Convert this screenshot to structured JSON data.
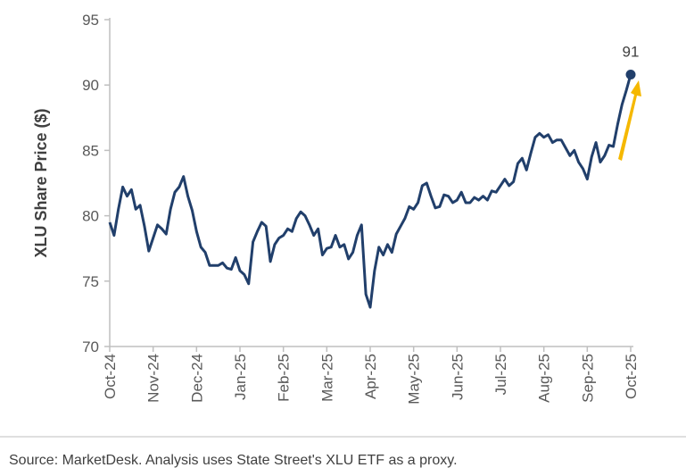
{
  "chart_data": {
    "type": "line",
    "y_label": "XLU Share Price ($)",
    "source": "Source: MarketDesk. Analysis uses State Street's XLU ETF as a proxy.",
    "categories": [
      "Oct-24",
      null,
      null,
      null,
      null,
      null,
      null,
      null,
      null,
      null,
      "Nov-24",
      null,
      null,
      null,
      null,
      null,
      null,
      null,
      null,
      null,
      "Dec-24",
      null,
      null,
      null,
      null,
      null,
      null,
      null,
      null,
      null,
      "Jan-25",
      null,
      null,
      null,
      null,
      null,
      null,
      null,
      null,
      null,
      "Feb-25",
      null,
      null,
      null,
      null,
      null,
      null,
      null,
      null,
      null,
      "Mar-25",
      null,
      null,
      null,
      null,
      null,
      null,
      null,
      null,
      null,
      "Apr-25",
      null,
      null,
      null,
      null,
      null,
      null,
      null,
      null,
      null,
      "May-25",
      null,
      null,
      null,
      null,
      null,
      null,
      null,
      null,
      null,
      "Jun-25",
      null,
      null,
      null,
      null,
      null,
      null,
      null,
      null,
      null,
      "Jul-25",
      null,
      null,
      null,
      null,
      null,
      null,
      null,
      null,
      null,
      "Aug-25",
      null,
      null,
      null,
      null,
      null,
      null,
      null,
      null,
      null,
      "Sep-25",
      null,
      null,
      null,
      null,
      null,
      null,
      null,
      null,
      null,
      "Oct-25"
    ],
    "series": [
      {
        "name": "XLU",
        "color": "#213f6b",
        "values": [
          79.5,
          78.5,
          80.5,
          82.2,
          81.5,
          82,
          80.5,
          80.8,
          79.2,
          77.3,
          78.3,
          79.3,
          79,
          78.6,
          80.5,
          81.8,
          82.2,
          83,
          81.5,
          80.4,
          78.8,
          77.6,
          77.2,
          76.2,
          76.2,
          76.2,
          76.4,
          76,
          75.9,
          76.8,
          75.8,
          75.5,
          74.8,
          78,
          78.8,
          79.5,
          79.2,
          76.5,
          77.8,
          78.3,
          78.5,
          79,
          78.8,
          79.8,
          80.3,
          80,
          79.3,
          78.5,
          79,
          77,
          77.5,
          77.6,
          78.5,
          77.6,
          77.8,
          76.7,
          77.2,
          78.5,
          79.3,
          74,
          73,
          75.8,
          77.6,
          77,
          77.8,
          77.2,
          78.6,
          79.2,
          79.8,
          80.7,
          80.5,
          81,
          82.3,
          82.5,
          81.5,
          80.6,
          80.7,
          81.6,
          81.5,
          81,
          81.2,
          81.8,
          81,
          81,
          81.4,
          81.2,
          81.5,
          81.2,
          81.9,
          81.8,
          82.3,
          82.8,
          82.3,
          82.6,
          84,
          84.4,
          83.5,
          84.8,
          86,
          86.3,
          86,
          86.2,
          85.6,
          85.8,
          85.8,
          85.2,
          84.6,
          85,
          84.1,
          83.6,
          82.8,
          84.5,
          85.6,
          84.1,
          84.6,
          85.4,
          85.3,
          87,
          88.5,
          89.6,
          90.8
        ],
        "value_labels": [
          null,
          null,
          null,
          null,
          null,
          null,
          null,
          null,
          null,
          null,
          null,
          null,
          null,
          null,
          null,
          null,
          null,
          null,
          null,
          null,
          null,
          null,
          null,
          null,
          null,
          null,
          null,
          null,
          null,
          null,
          null,
          null,
          null,
          null,
          null,
          null,
          null,
          null,
          null,
          null,
          null,
          null,
          null,
          null,
          null,
          null,
          null,
          null,
          null,
          null,
          null,
          null,
          null,
          null,
          null,
          null,
          null,
          null,
          null,
          null,
          null,
          null,
          null,
          null,
          null,
          null,
          null,
          null,
          null,
          null,
          null,
          null,
          null,
          null,
          null,
          null,
          null,
          null,
          null,
          null,
          null,
          null,
          null,
          null,
          null,
          null,
          null,
          null,
          null,
          null,
          null,
          null,
          null,
          null,
          null,
          null,
          null,
          null,
          null,
          null,
          null,
          null,
          null,
          null,
          null,
          null,
          null,
          null,
          null,
          null,
          null,
          null,
          null,
          null,
          null,
          null,
          null,
          null,
          null,
          null,
          "91"
        ]
      }
    ],
    "ylim": [
      70,
      95
    ],
    "yticks": [
      70,
      75,
      80,
      85,
      90,
      95
    ],
    "grid": false
  }
}
